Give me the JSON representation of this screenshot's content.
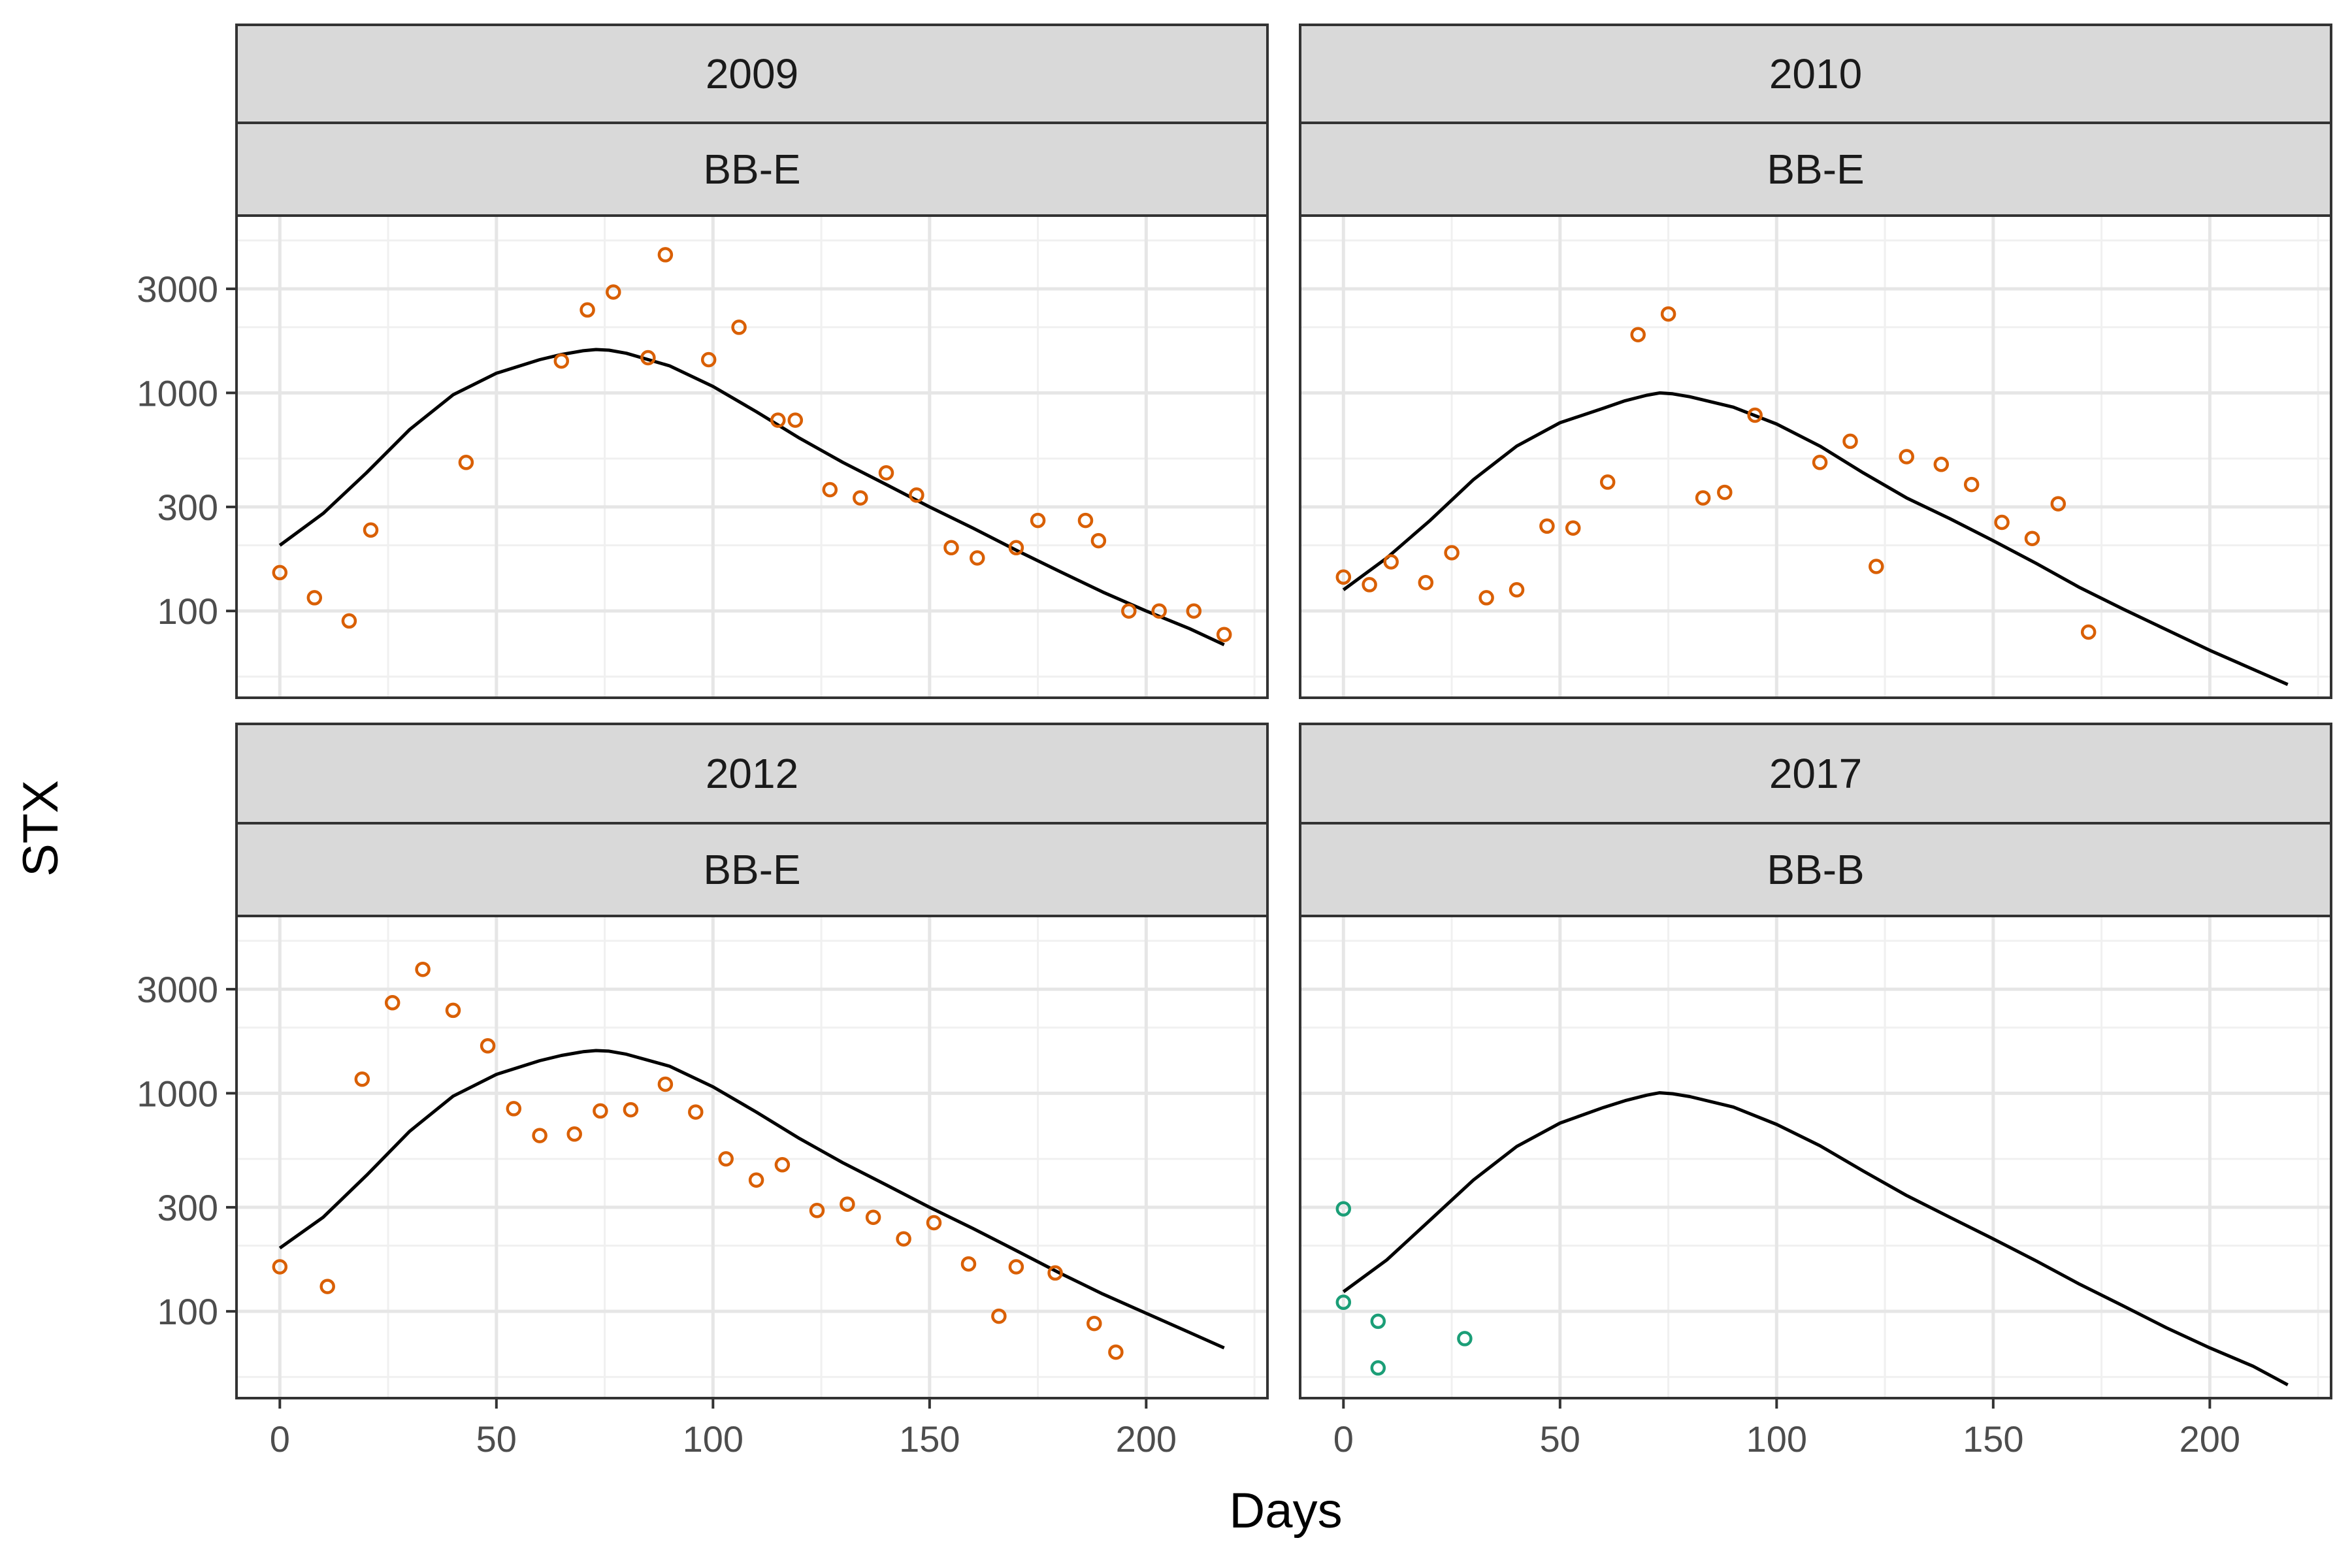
{
  "chart_data": {
    "type": "scatter",
    "xlabel": "Days",
    "ylabel": "STX",
    "xlim": [
      -10,
      228
    ],
    "ylim": [
      40,
      6500
    ],
    "y_scale": "log",
    "x_ticks": [
      0,
      50,
      100,
      150,
      200
    ],
    "y_ticks": [
      100,
      300,
      1000,
      3000
    ],
    "y_minor_ticks": [
      50,
      200,
      500,
      2000,
      5000
    ],
    "x_tick_labels": [
      "0",
      "50",
      "100",
      "150",
      "200"
    ],
    "y_tick_labels": [
      "100",
      "300",
      "1000",
      "3000"
    ],
    "grid": true,
    "colors": {
      "BB-E": "#d95f02",
      "BB-B": "#1b9e77",
      "fit": "#000000"
    },
    "panels": [
      {
        "year": "2009",
        "site": "BB-E",
        "points": [
          [
            0,
            150
          ],
          [
            8,
            115
          ],
          [
            16,
            90
          ],
          [
            21,
            235
          ],
          [
            43,
            480
          ],
          [
            65,
            1400
          ],
          [
            71,
            2400
          ],
          [
            77,
            2900
          ],
          [
            85,
            1450
          ],
          [
            89,
            4300
          ],
          [
            99,
            1420
          ],
          [
            106,
            2000
          ],
          [
            115,
            750
          ],
          [
            119,
            750
          ],
          [
            127,
            360
          ],
          [
            134,
            330
          ],
          [
            140,
            430
          ],
          [
            147,
            340
          ],
          [
            155,
            195
          ],
          [
            161,
            175
          ],
          [
            170,
            195
          ],
          [
            175,
            260
          ],
          [
            186,
            260
          ],
          [
            189,
            210
          ],
          [
            196,
            100
          ],
          [
            203,
            100
          ],
          [
            211,
            100
          ],
          [
            218,
            78
          ]
        ],
        "fit": [
          [
            0,
            200
          ],
          [
            10,
            280
          ],
          [
            20,
            430
          ],
          [
            30,
            680
          ],
          [
            40,
            980
          ],
          [
            50,
            1230
          ],
          [
            60,
            1420
          ],
          [
            65,
            1500
          ],
          [
            70,
            1560
          ],
          [
            73,
            1580
          ],
          [
            76,
            1570
          ],
          [
            80,
            1520
          ],
          [
            90,
            1330
          ],
          [
            100,
            1070
          ],
          [
            110,
            820
          ],
          [
            120,
            620
          ],
          [
            130,
            480
          ],
          [
            140,
            380
          ],
          [
            150,
            300
          ],
          [
            160,
            240
          ],
          [
            170,
            190
          ],
          [
            180,
            152
          ],
          [
            190,
            122
          ],
          [
            200,
            100
          ],
          [
            210,
            83
          ],
          [
            218,
            70
          ]
        ]
      },
      {
        "year": "2010",
        "site": "BB-E",
        "points": [
          [
            0,
            143
          ],
          [
            6,
            132
          ],
          [
            11,
            168
          ],
          [
            19,
            135
          ],
          [
            25,
            185
          ],
          [
            33,
            115
          ],
          [
            40,
            125
          ],
          [
            47,
            245
          ],
          [
            53,
            240
          ],
          [
            61,
            390
          ],
          [
            68,
            1850
          ],
          [
            75,
            2300
          ],
          [
            83,
            330
          ],
          [
            88,
            350
          ],
          [
            95,
            790
          ],
          [
            110,
            480
          ],
          [
            117,
            600
          ],
          [
            123,
            160
          ],
          [
            130,
            510
          ],
          [
            138,
            470
          ],
          [
            145,
            380
          ],
          [
            152,
            255
          ],
          [
            159,
            215
          ],
          [
            165,
            310
          ],
          [
            172,
            80
          ]
        ],
        "fit": [
          [
            0,
            125
          ],
          [
            10,
            175
          ],
          [
            20,
            260
          ],
          [
            30,
            400
          ],
          [
            40,
            570
          ],
          [
            50,
            730
          ],
          [
            60,
            850
          ],
          [
            65,
            920
          ],
          [
            70,
            975
          ],
          [
            73,
            1000
          ],
          [
            76,
            990
          ],
          [
            80,
            960
          ],
          [
            90,
            860
          ],
          [
            100,
            720
          ],
          [
            110,
            570
          ],
          [
            120,
            430
          ],
          [
            130,
            330
          ],
          [
            140,
            265
          ],
          [
            150,
            210
          ],
          [
            160,
            165
          ],
          [
            170,
            128
          ],
          [
            180,
            102
          ],
          [
            190,
            82
          ],
          [
            200,
            66
          ],
          [
            210,
            54
          ],
          [
            218,
            46
          ]
        ]
      },
      {
        "year": "2012",
        "site": "BB-E",
        "points": [
          [
            0,
            160
          ],
          [
            11,
            130
          ],
          [
            19,
            1160
          ],
          [
            26,
            2600
          ],
          [
            33,
            3700
          ],
          [
            40,
            2400
          ],
          [
            48,
            1650
          ],
          [
            54,
            850
          ],
          [
            60,
            640
          ],
          [
            68,
            650
          ],
          [
            74,
            830
          ],
          [
            81,
            840
          ],
          [
            89,
            1100
          ],
          [
            96,
            820
          ],
          [
            103,
            500
          ],
          [
            110,
            400
          ],
          [
            116,
            470
          ],
          [
            124,
            290
          ],
          [
            131,
            310
          ],
          [
            137,
            270
          ],
          [
            144,
            215
          ],
          [
            151,
            255
          ],
          [
            159,
            165
          ],
          [
            166,
            95
          ],
          [
            170,
            160
          ],
          [
            179,
            150
          ],
          [
            188,
            88
          ],
          [
            193,
            65
          ]
        ],
        "fit": [
          [
            0,
            195
          ],
          [
            10,
            270
          ],
          [
            20,
            420
          ],
          [
            30,
            670
          ],
          [
            40,
            970
          ],
          [
            50,
            1220
          ],
          [
            60,
            1410
          ],
          [
            65,
            1490
          ],
          [
            70,
            1550
          ],
          [
            73,
            1570
          ],
          [
            76,
            1560
          ],
          [
            80,
            1510
          ],
          [
            90,
            1330
          ],
          [
            100,
            1070
          ],
          [
            110,
            820
          ],
          [
            120,
            620
          ],
          [
            130,
            480
          ],
          [
            140,
            380
          ],
          [
            150,
            300
          ],
          [
            160,
            240
          ],
          [
            170,
            190
          ],
          [
            180,
            150
          ],
          [
            190,
            120
          ],
          [
            200,
            98
          ],
          [
            210,
            80
          ],
          [
            218,
            68
          ]
        ]
      },
      {
        "year": "2017",
        "site": "BB-B",
        "points": [
          [
            0,
            295
          ],
          [
            0,
            110
          ],
          [
            8,
            90
          ],
          [
            8,
            55
          ],
          [
            28,
            75
          ]
        ],
        "fit": [
          [
            0,
            123
          ],
          [
            10,
            172
          ],
          [
            20,
            262
          ],
          [
            30,
            400
          ],
          [
            40,
            570
          ],
          [
            50,
            730
          ],
          [
            60,
            860
          ],
          [
            65,
            925
          ],
          [
            70,
            980
          ],
          [
            73,
            1005
          ],
          [
            76,
            995
          ],
          [
            80,
            965
          ],
          [
            90,
            865
          ],
          [
            100,
            720
          ],
          [
            110,
            575
          ],
          [
            120,
            440
          ],
          [
            130,
            340
          ],
          [
            140,
            270
          ],
          [
            150,
            215
          ],
          [
            160,
            170
          ],
          [
            170,
            133
          ],
          [
            180,
            106
          ],
          [
            190,
            84
          ],
          [
            200,
            68
          ],
          [
            210,
            56
          ],
          [
            218,
            46
          ]
        ]
      }
    ]
  }
}
